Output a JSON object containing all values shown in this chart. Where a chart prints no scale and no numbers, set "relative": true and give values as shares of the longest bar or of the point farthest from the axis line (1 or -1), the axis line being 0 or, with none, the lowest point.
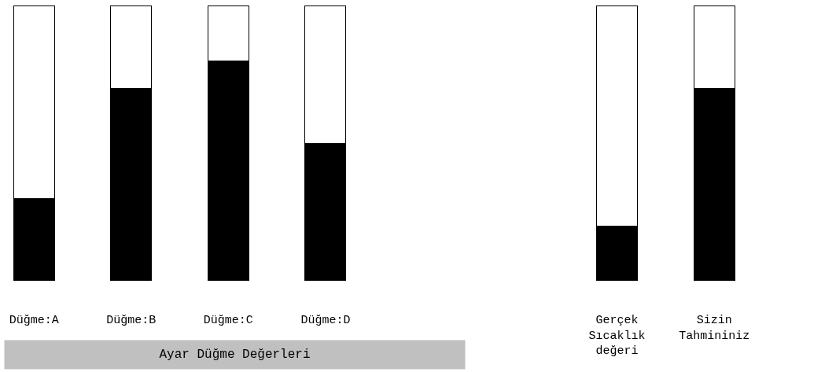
{
  "chart_data": {
    "type": "bar",
    "relative": true,
    "stacked": true,
    "categories": [
      "Düğme:A",
      "Düğme:B",
      "Düğme:C",
      "Düğme:D",
      null,
      null,
      "Gerçek Sıcaklık değeri",
      "Sizin Tahmininiz"
    ],
    "series": [
      {
        "color": "#000000",
        "values": [
          0.3,
          0.7,
          0.8,
          0.5,
          null,
          null,
          0.2,
          0.7
        ]
      },
      {
        "color": "#ffffff",
        "values": [
          0.7,
          0.3,
          0.2,
          0.5,
          null,
          null,
          0.8,
          0.3
        ]
      }
    ],
    "annotations": [
      "Ayar Düğme Değerleri"
    ]
  }
}
